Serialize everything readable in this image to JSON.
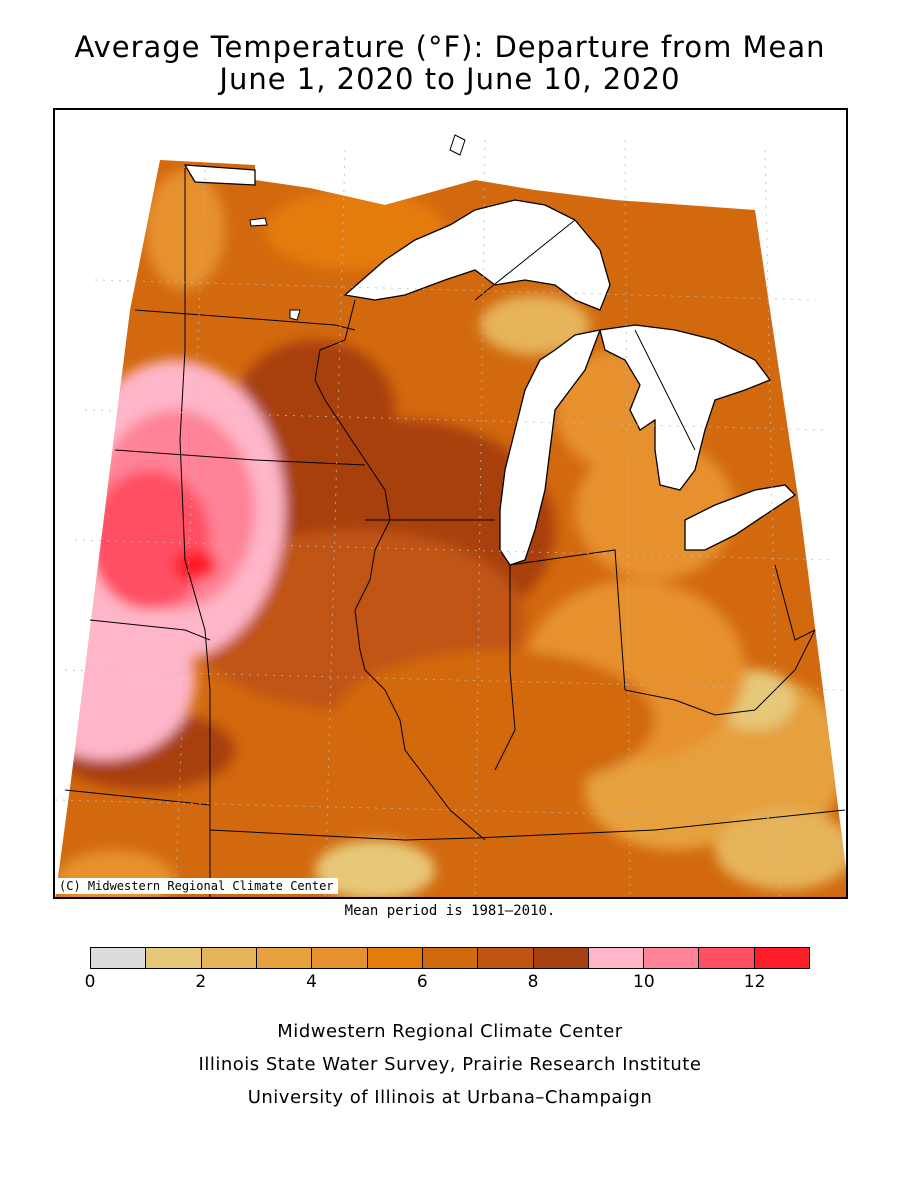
{
  "title": {
    "line1": "Average Temperature (°F): Departure from Mean",
    "line2": "June 1, 2020 to June 10, 2020"
  },
  "map": {
    "copyright": "(C) Midwestern Regional Climate Center",
    "mean_period": "Mean period is 1981–2010."
  },
  "legend": {
    "colors": [
      "#dcdcdc",
      "#e6c878",
      "#e6b45a",
      "#e6a03c",
      "#e6912d",
      "#e47c0c",
      "#d2690f",
      "#c05512",
      "#a84111",
      "#ffb6c8",
      "#ff8296",
      "#ff5064",
      "#ff1e28"
    ],
    "ticks": [
      "0",
      "2",
      "4",
      "6",
      "8",
      "10",
      "12"
    ]
  },
  "credits": {
    "line1": "Midwestern Regional Climate Center",
    "line2": "Illinois State Water Survey, Prairie Research Institute",
    "line3": "University of Illinois at Urbana–Champaign"
  }
}
